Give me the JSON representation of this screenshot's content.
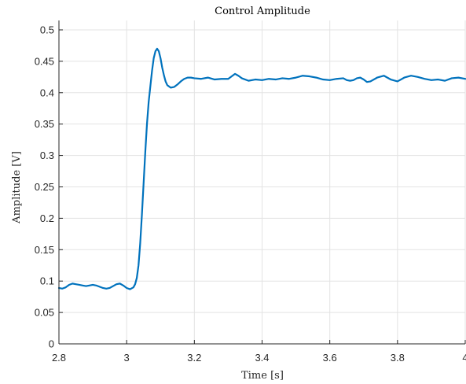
{
  "chart_data": {
    "type": "line",
    "title": "Control Amplitude",
    "xlabel": "Time [s]",
    "ylabel": "Amplitude [V]",
    "xlim": [
      2.8,
      4.0
    ],
    "ylim": [
      0,
      0.515
    ],
    "xticks": [
      2.8,
      3.0,
      3.2,
      3.4,
      3.6,
      3.8,
      4.0
    ],
    "xtick_labels": [
      "2.8",
      "3",
      "3.2",
      "3.4",
      "3.6",
      "3.8",
      "4"
    ],
    "yticks": [
      0,
      0.05,
      0.1,
      0.15,
      0.2,
      0.25,
      0.3,
      0.35,
      0.4,
      0.45,
      0.5
    ],
    "ytick_labels": [
      "0",
      "0.05",
      "0.1",
      "0.15",
      "0.2",
      "0.25",
      "0.3",
      "0.35",
      "0.4",
      "0.45",
      "0.5"
    ],
    "grid": true,
    "series": [
      {
        "color": "#0072BD",
        "x": [
          2.8,
          2.81,
          2.82,
          2.83,
          2.84,
          2.85,
          2.86,
          2.87,
          2.88,
          2.89,
          2.9,
          2.91,
          2.92,
          2.93,
          2.94,
          2.95,
          2.96,
          2.97,
          2.98,
          2.99,
          3.0,
          3.01,
          3.02,
          3.025,
          3.03,
          3.035,
          3.04,
          3.045,
          3.05,
          3.055,
          3.06,
          3.065,
          3.07,
          3.075,
          3.08,
          3.085,
          3.09,
          3.095,
          3.1,
          3.105,
          3.11,
          3.115,
          3.12,
          3.13,
          3.14,
          3.15,
          3.16,
          3.17,
          3.18,
          3.19,
          3.2,
          3.22,
          3.24,
          3.26,
          3.28,
          3.3,
          3.32,
          3.33,
          3.34,
          3.36,
          3.38,
          3.4,
          3.42,
          3.44,
          3.46,
          3.48,
          3.5,
          3.52,
          3.54,
          3.56,
          3.58,
          3.6,
          3.62,
          3.64,
          3.65,
          3.66,
          3.67,
          3.68,
          3.69,
          3.7,
          3.71,
          3.72,
          3.74,
          3.76,
          3.78,
          3.8,
          3.82,
          3.84,
          3.86,
          3.88,
          3.9,
          3.92,
          3.94,
          3.96,
          3.98,
          4.0
        ],
        "y": [
          0.089,
          0.088,
          0.09,
          0.094,
          0.096,
          0.095,
          0.094,
          0.093,
          0.092,
          0.093,
          0.094,
          0.093,
          0.091,
          0.089,
          0.088,
          0.089,
          0.092,
          0.095,
          0.096,
          0.093,
          0.089,
          0.087,
          0.09,
          0.095,
          0.105,
          0.125,
          0.16,
          0.205,
          0.255,
          0.305,
          0.35,
          0.385,
          0.41,
          0.435,
          0.455,
          0.466,
          0.47,
          0.466,
          0.455,
          0.44,
          0.428,
          0.418,
          0.412,
          0.408,
          0.409,
          0.413,
          0.418,
          0.422,
          0.424,
          0.424,
          0.423,
          0.422,
          0.424,
          0.421,
          0.422,
          0.422,
          0.43,
          0.427,
          0.423,
          0.419,
          0.421,
          0.42,
          0.422,
          0.421,
          0.423,
          0.422,
          0.424,
          0.427,
          0.426,
          0.424,
          0.421,
          0.42,
          0.422,
          0.423,
          0.42,
          0.419,
          0.42,
          0.423,
          0.424,
          0.421,
          0.417,
          0.418,
          0.424,
          0.427,
          0.421,
          0.418,
          0.424,
          0.427,
          0.425,
          0.422,
          0.42,
          0.421,
          0.419,
          0.423,
          0.424,
          0.422
        ]
      }
    ]
  }
}
